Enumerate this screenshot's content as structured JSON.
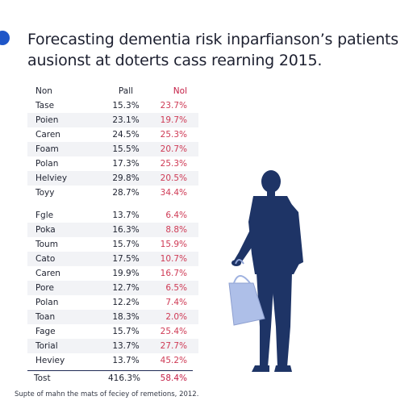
{
  "title": {
    "line1": "Forecasting dementia risk inparfianson’s patients",
    "line2": "ausionst at doterts cass rearning 2015."
  },
  "table": {
    "headers": [
      "Non",
      "Pall",
      "Nol"
    ],
    "group1": [
      [
        "Tase",
        "15.3%",
        "23.7%"
      ],
      [
        "Poien",
        "23.1%",
        "19.7%"
      ],
      [
        "Caren",
        "24.5%",
        "25.3%"
      ],
      [
        "Foam",
        "15.5%",
        "20.7%"
      ],
      [
        "Polan",
        "17.3%",
        "25.3%"
      ],
      [
        "Helviey",
        "29.8%",
        "20.5%"
      ],
      [
        "Toyy",
        "28.7%",
        "34.4%"
      ]
    ],
    "group2": [
      [
        "Fgle",
        "13.7%",
        "6.4%"
      ],
      [
        "Poka",
        "16.3%",
        "8.8%"
      ],
      [
        "Toum",
        "15.7%",
        "15.9%"
      ],
      [
        "Cato",
        "17.5%",
        "10.7%"
      ],
      [
        "Caren",
        "19.9%",
        "16.7%"
      ],
      [
        "Pore",
        "12.7%",
        "6.5%"
      ],
      [
        "Polan",
        "12.2%",
        "7.4%"
      ],
      [
        "Toan",
        "18.3%",
        "2.0%"
      ],
      [
        "Fage",
        "15.7%",
        "25.4%"
      ],
      [
        "Torial",
        "13.7%",
        "27.7%"
      ],
      [
        "Heviey",
        "13.7%",
        "45.2%"
      ]
    ],
    "total": [
      "Tost",
      "416.3%",
      "58.4%"
    ]
  },
  "footnote": "Supte of mahn the mats of feciey of remetions, 2012.",
  "colors": {
    "accent": "#1f56c8",
    "highlight": "#c41d45",
    "figure": "#1e3466",
    "bag": "#aebfe8"
  }
}
